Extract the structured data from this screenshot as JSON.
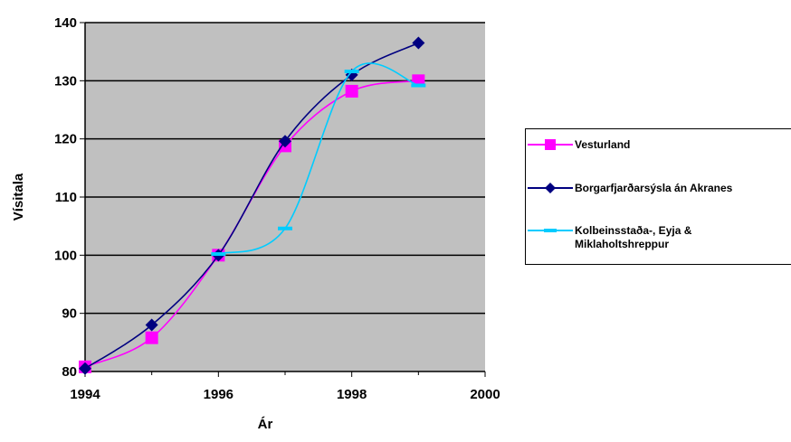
{
  "chart_data": {
    "type": "line",
    "xlabel": "Ár",
    "ylabel": "Vísitala",
    "xlim": [
      1994,
      2000
    ],
    "ylim": [
      80,
      140
    ],
    "x_ticks": [
      "1994",
      "1996",
      "1998",
      "2000"
    ],
    "y_ticks": [
      "80",
      "90",
      "100",
      "110",
      "120",
      "130",
      "140"
    ],
    "plot_background": "#c0c0c0",
    "grid": "horizontal",
    "legend_position": "right",
    "series": [
      {
        "name": "Vesturland",
        "color": "#ff00ff",
        "marker": "square",
        "x": [
          1994,
          1995,
          1996,
          1997,
          1998,
          1999
        ],
        "values": [
          80.8,
          85.8,
          100,
          118.8,
          128.2,
          130
        ]
      },
      {
        "name": "Borgarfjarðarsýsla án Akranes",
        "color": "#000080",
        "marker": "diamond",
        "x": [
          1994,
          1995,
          1996,
          1997,
          1998,
          1999
        ],
        "values": [
          80.5,
          88,
          100,
          119.6,
          131,
          136.5
        ]
      },
      {
        "name": "Kolbeinsstaða-, Eyja &\nMiklaholtshreppur",
        "color": "#00ccff",
        "marker": "dash",
        "x": [
          1996,
          1997,
          1998,
          1999
        ],
        "values": [
          100.2,
          104.6,
          131.6,
          129.2
        ]
      }
    ]
  }
}
